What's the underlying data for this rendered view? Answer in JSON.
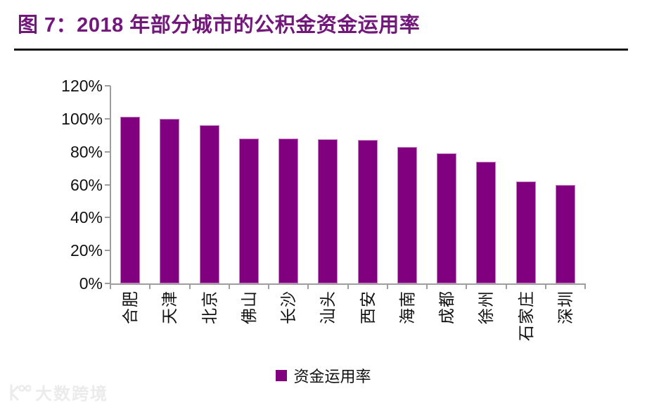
{
  "header": {
    "title": "图 7：2018 年部分城市的公积金资金运用率"
  },
  "legend": {
    "label": "资金运用率"
  },
  "watermark": {
    "text": "大数跨境"
  },
  "colors": {
    "bar": "#800080",
    "bar_border": "#C77EC7",
    "title": "#71187A",
    "axis": "#9E9E9E",
    "text": "#111111",
    "separator": "#161616",
    "watermark": "#EBEBEB"
  },
  "chart_data": {
    "type": "bar",
    "title": "2018 年部分城市的公积金资金运用率",
    "categories": [
      "合肥",
      "天津",
      "北京",
      "佛山",
      "长沙",
      "汕头",
      "西安",
      "海南",
      "成都",
      "徐州",
      "石家庄",
      "深圳"
    ],
    "series": [
      {
        "name": "资金运用率",
        "values": [
          101,
          100,
          96,
          88,
          88,
          87.5,
          87,
          83,
          79,
          74,
          62,
          60
        ]
      }
    ],
    "xlabel": "",
    "ylabel": "",
    "ylim": [
      0,
      120
    ],
    "ytick_step": 20,
    "ytick_labels": [
      "0%",
      "20%",
      "40%",
      "60%",
      "80%",
      "100%",
      "120%"
    ],
    "grid": false,
    "legend_position": "bottom",
    "bar_color": "#800080"
  }
}
